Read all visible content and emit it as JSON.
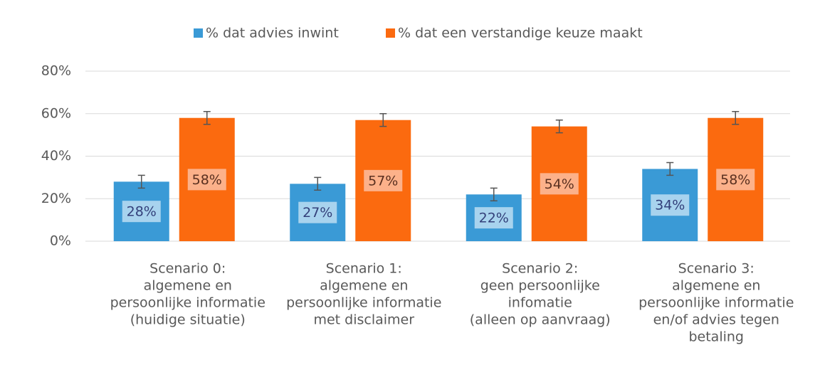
{
  "chart_data": {
    "type": "bar",
    "categories": [
      [
        "Scenario 0:",
        "algemene en",
        "persoonlijke informatie",
        "(huidige situatie)"
      ],
      [
        "Scenario 1:",
        "algemene en",
        "persoonlijke informatie",
        "met disclaimer"
      ],
      [
        "Scenario 2:",
        "geen persoonlijke",
        "infomatie",
        "(alleen op aanvraag)"
      ],
      [
        "Scenario 3:",
        "algemene en",
        "persoonlijke informatie",
        "en/of advies tegen",
        "betaling"
      ]
    ],
    "series": [
      {
        "name": "% dat advies inwint",
        "color": "#3a9ad6",
        "values": [
          28,
          27,
          22,
          34
        ],
        "value_labels": [
          "28%",
          "27%",
          "22%",
          "34%"
        ],
        "errors": [
          3,
          3,
          3,
          3
        ]
      },
      {
        "name": "% dat een verstandige keuze maakt",
        "color": "#fb6a0f",
        "values": [
          58,
          57,
          54,
          58
        ],
        "value_labels": [
          "58%",
          "57%",
          "54%",
          "58%"
        ],
        "errors": [
          3,
          3,
          3,
          3
        ]
      }
    ],
    "ylim": [
      0,
      80
    ],
    "yticks": [
      {
        "value": 0,
        "label": "0%"
      },
      {
        "value": 20,
        "label": "20%"
      },
      {
        "value": 40,
        "label": "40%"
      },
      {
        "value": 60,
        "label": "60%"
      },
      {
        "value": 80,
        "label": "80%"
      }
    ],
    "grid": true,
    "legend": "top"
  }
}
